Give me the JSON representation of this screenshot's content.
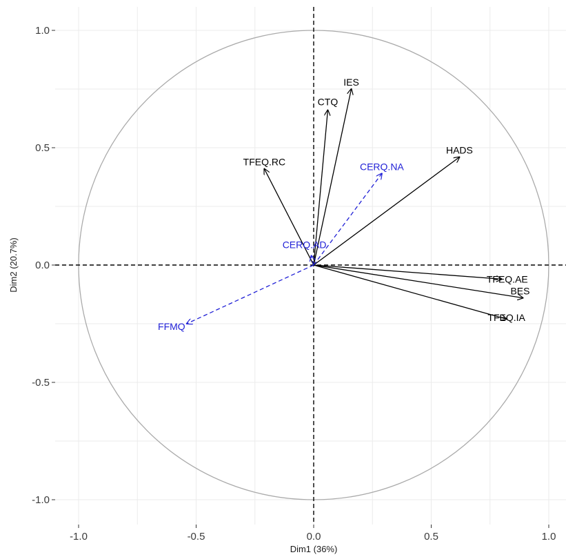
{
  "chart_data": {
    "type": "scatter",
    "subtype": "pca-correlation-circle",
    "title": "",
    "xlabel": "Dim1 (36%)",
    "ylabel": "Dim2 (20.7%)",
    "xlim": [
      -1.0,
      1.0
    ],
    "ylim": [
      -1.0,
      1.0
    ],
    "xticks": [
      -1.0,
      -0.5,
      0.0,
      0.5,
      1.0
    ],
    "yticks": [
      -1.0,
      -0.5,
      0.0,
      0.5,
      1.0
    ],
    "xtick_labels": [
      "-1.0",
      "-0.5",
      "0.0",
      "0.5",
      "1.0"
    ],
    "ytick_labels": [
      "-1.0",
      "-0.5",
      "0.0",
      "0.5",
      "1.0"
    ],
    "grid": true,
    "unit_circle": true,
    "colors": {
      "active": "#000000",
      "supplementary": "#1f1fd6",
      "circle": "#aaaaaa",
      "grid": "#ebebeb"
    },
    "series": [
      {
        "group": "active",
        "points": [
          {
            "label": "IES",
            "x": 0.16,
            "y": 0.75
          },
          {
            "label": "CTQ",
            "x": 0.06,
            "y": 0.66
          },
          {
            "label": "HADS",
            "x": 0.62,
            "y": 0.46
          },
          {
            "label": "TFEQ.RC",
            "x": -0.21,
            "y": 0.41
          },
          {
            "label": "TFEQ.AE",
            "x": 0.8,
            "y": -0.06
          },
          {
            "label": "BES",
            "x": 0.89,
            "y": -0.14
          },
          {
            "label": "TFEQ.IA",
            "x": 0.82,
            "y": -0.23
          }
        ]
      },
      {
        "group": "supplementary",
        "points": [
          {
            "label": "CERQ.NA",
            "x": 0.29,
            "y": 0.39
          },
          {
            "label": "CERQ.AD",
            "x": -0.01,
            "y": 0.04
          },
          {
            "label": "FFMQ",
            "x": -0.54,
            "y": -0.25
          }
        ]
      }
    ]
  }
}
